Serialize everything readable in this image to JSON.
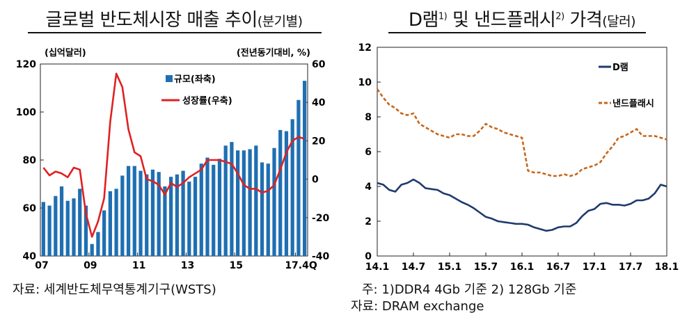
{
  "left": {
    "title_main": "글로벌 반도체시장 매출 추이",
    "title_sub": "(분기별)",
    "source": "자료:  세계반도체무역통계기구(WSTS)"
  },
  "right": {
    "title_a": "D램",
    "title_sup1": "1)",
    "title_b": " 및 낸드플래시",
    "title_sup2": "2)",
    "title_c": " 가격",
    "title_sub": "(달러)",
    "note": "주: 1)DDR4  4Gb  기준      2)  128Gb  기준",
    "source": "자료:  DRAM  exchange"
  },
  "chart_data": [
    {
      "type": "bar+line",
      "title": "글로벌 반도체시장 매출 추이(분기별)",
      "left_unit": "(십억달러)",
      "right_unit": "(전년동기대비, %)",
      "ylim_left": [
        40,
        120
      ],
      "yticks_left": [
        "40",
        "60",
        "80",
        "100",
        "120"
      ],
      "ylim_right": [
        -40,
        60
      ],
      "yticks_right": [
        "-40",
        "-20",
        "0",
        "20",
        "40",
        "60"
      ],
      "xticks": [
        {
          "q": 0,
          "label": "07"
        },
        {
          "q": 8,
          "label": "09"
        },
        {
          "q": 16,
          "label": "11"
        },
        {
          "q": 24,
          "label": "13"
        },
        {
          "q": 32,
          "label": "15"
        },
        {
          "q": 42,
          "label": "17.4Q"
        }
      ],
      "grid": false,
      "legend": "top-right",
      "series": [
        {
          "name": "규모(좌축)",
          "kind": "bar",
          "axis": "left",
          "color": "#1f6fb2",
          "values": [
            62.5,
            61,
            65,
            69,
            63,
            64,
            68,
            61,
            45,
            50,
            59,
            67,
            68,
            73.5,
            77.5,
            77.5,
            75.5,
            74,
            76,
            75,
            69,
            73,
            74,
            75.5,
            71,
            73,
            78.5,
            81,
            78,
            80.5,
            86,
            87.5,
            84,
            84,
            84.5,
            86,
            79,
            78.5,
            85,
            92.5,
            92,
            97,
            105,
            113
          ]
        },
        {
          "name": "성장률(우축)",
          "kind": "line",
          "axis": "right",
          "color": "#e02020",
          "x": [
            0,
            1,
            2,
            3,
            4,
            5,
            6,
            7,
            8,
            9,
            10,
            11,
            12,
            13,
            14,
            15,
            16,
            17,
            18,
            19,
            20,
            21,
            22,
            23,
            24,
            25,
            26,
            27,
            28,
            29,
            30,
            31,
            32,
            33,
            34,
            35,
            36,
            37,
            38,
            39,
            40,
            41,
            42,
            43
          ],
          "values": [
            6,
            2,
            4,
            3,
            1,
            6,
            5,
            -18,
            -30,
            -22,
            -10,
            30,
            55,
            48,
            26,
            14,
            12,
            0,
            -1,
            -3,
            -8,
            -2,
            -4,
            -2,
            1,
            3,
            5,
            10,
            10,
            10,
            9,
            8,
            3,
            -3,
            -5,
            -5,
            -7,
            -6,
            -3,
            5,
            14,
            20,
            22,
            21
          ]
        }
      ]
    },
    {
      "type": "line",
      "title": "D램 및 낸드플래시 가격(달러)",
      "ylim": [
        0,
        12
      ],
      "yticks": [
        "0",
        "2",
        "4",
        "6",
        "8",
        "10",
        "12"
      ],
      "xlim": [
        "14.1",
        "18.1"
      ],
      "xticks": [
        "14.1",
        "14.7",
        "15.1",
        "15.7",
        "16.1",
        "16.7",
        "17.1",
        "17.7",
        "18.1"
      ],
      "grid": false,
      "legend": "right",
      "series": [
        {
          "name": "D램",
          "style": "solid",
          "color": "#1f3a6e",
          "x": [
            "14.1",
            "14.2",
            "14.3",
            "14.4",
            "14.5",
            "14.6",
            "14.7",
            "14.8",
            "14.9",
            "14.10",
            "14.11",
            "14.12",
            "15.1",
            "15.2",
            "15.3",
            "15.4",
            "15.5",
            "15.6",
            "15.7",
            "15.8",
            "15.9",
            "15.10",
            "15.11",
            "15.12",
            "16.1",
            "16.2",
            "16.3",
            "16.4",
            "16.5",
            "16.6",
            "16.7",
            "16.8",
            "16.9",
            "16.10",
            "16.11",
            "16.12",
            "17.1",
            "17.2",
            "17.3",
            "17.4",
            "17.5",
            "17.6",
            "17.7",
            "17.8",
            "17.9",
            "17.10",
            "17.11",
            "17.12",
            "18.1"
          ],
          "values": [
            4.2,
            4.1,
            3.8,
            3.7,
            4.1,
            4.2,
            4.4,
            4.2,
            3.9,
            3.85,
            3.8,
            3.6,
            3.5,
            3.3,
            3.1,
            2.95,
            2.75,
            2.5,
            2.25,
            2.15,
            2.0,
            1.95,
            1.9,
            1.85,
            1.85,
            1.8,
            1.65,
            1.55,
            1.45,
            1.5,
            1.65,
            1.7,
            1.7,
            1.9,
            2.3,
            2.6,
            2.7,
            3.0,
            3.05,
            2.95,
            2.95,
            2.9,
            3.0,
            3.2,
            3.2,
            3.3,
            3.6,
            4.1,
            4.0
          ]
        },
        {
          "name": "낸드플래시",
          "style": "dashed",
          "color": "#c8661a",
          "x": [
            "14.1",
            "14.2",
            "14.3",
            "14.4",
            "14.5",
            "14.6",
            "14.7",
            "14.8",
            "14.9",
            "14.10",
            "14.11",
            "14.12",
            "15.1",
            "15.2",
            "15.3",
            "15.4",
            "15.5",
            "15.6",
            "15.7",
            "15.8",
            "15.9",
            "15.10",
            "15.11",
            "15.12",
            "16.1",
            "16.2",
            "16.3",
            "16.4",
            "16.5",
            "16.6",
            "16.7",
            "16.8",
            "16.9",
            "16.10",
            "16.11",
            "16.12",
            "17.1",
            "17.2",
            "17.3",
            "17.4",
            "17.5",
            "17.6",
            "17.7",
            "17.8",
            "17.9",
            "17.10",
            "17.11",
            "17.12",
            "18.1"
          ],
          "values": [
            9.6,
            9.1,
            8.7,
            8.5,
            8.2,
            8.1,
            8.2,
            7.6,
            7.4,
            7.2,
            7.0,
            6.9,
            6.8,
            7.0,
            7.0,
            6.9,
            6.9,
            7.2,
            7.6,
            7.4,
            7.3,
            7.1,
            7.0,
            6.9,
            6.8,
            4.9,
            4.8,
            4.8,
            4.7,
            4.6,
            4.6,
            4.7,
            4.6,
            4.7,
            5.0,
            5.1,
            5.2,
            5.4,
            5.9,
            6.3,
            6.8,
            6.9,
            7.1,
            7.3,
            6.9,
            6.9,
            6.9,
            6.8,
            6.7
          ]
        }
      ]
    }
  ]
}
